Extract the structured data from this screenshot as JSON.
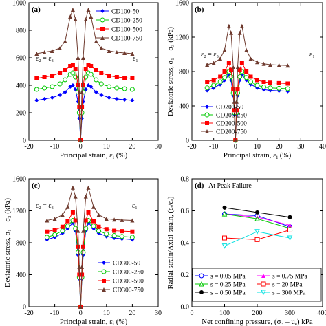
{
  "chart_data": [
    {
      "id": "a",
      "panel_label": "(a)",
      "type": "line",
      "xlabel": "Principal strain, ε",
      "xlabel_sub": "i",
      "xlabel_unit": " (%)",
      "ylabel": "",
      "xlim": [
        -20,
        30
      ],
      "ylim": [
        0,
        1000
      ],
      "xticks": [
        "-20",
        "-10",
        "0",
        "10",
        "20",
        "30"
      ],
      "yticks": [
        "0",
        "200",
        "400",
        "600",
        "800",
        "1000"
      ],
      "annotations": [
        "ε₂ = ε₃",
        "ε₁"
      ],
      "legend": [
        "CD100-50",
        "CD100-250",
        "CD100-500",
        "CD100-750"
      ],
      "series": [
        {
          "name": "CD100-50",
          "color": "#0000ff",
          "marker": "diamond",
          "x": [
            -17,
            -14,
            -11,
            -8,
            -6,
            -4,
            -3,
            -2,
            -1,
            -0.5,
            0,
            0.5,
            1,
            2,
            3,
            4,
            6,
            8,
            11,
            14,
            17,
            20
          ],
          "y": [
            290,
            300,
            310,
            330,
            350,
            390,
            400,
            370,
            280,
            160,
            0,
            160,
            280,
            370,
            400,
            390,
            350,
            330,
            310,
            300,
            295,
            290
          ]
        },
        {
          "name": "CD100-250",
          "color": "#00c800",
          "marker": "circle-open",
          "x": [
            -17,
            -14,
            -11,
            -8,
            -6,
            -4,
            -3,
            -2,
            -1,
            -0.5,
            0,
            0.5,
            1,
            2,
            3,
            4,
            6,
            8,
            11,
            14,
            17,
            20
          ],
          "y": [
            370,
            380,
            390,
            410,
            440,
            480,
            490,
            460,
            350,
            200,
            0,
            200,
            350,
            460,
            490,
            480,
            440,
            410,
            390,
            380,
            375,
            370
          ]
        },
        {
          "name": "CD100-500",
          "color": "#ff0000",
          "marker": "square",
          "x": [
            -17,
            -14,
            -11,
            -8,
            -6,
            -4,
            -3,
            -2,
            -1,
            -0.5,
            0,
            0.5,
            1,
            2,
            3,
            4,
            6,
            8,
            11,
            14,
            17,
            20
          ],
          "y": [
            450,
            460,
            470,
            490,
            510,
            540,
            550,
            520,
            400,
            240,
            0,
            240,
            400,
            520,
            550,
            540,
            510,
            490,
            470,
            460,
            455,
            450
          ]
        },
        {
          "name": "CD100-750",
          "color": "#6e3a2e",
          "marker": "triangle",
          "x": [
            -17,
            -14,
            -11,
            -8,
            -6,
            -4,
            -3,
            -2,
            -1,
            -0.5,
            0,
            0.5,
            1,
            2,
            3,
            4,
            6,
            8,
            11,
            14,
            17,
            20
          ],
          "y": [
            630,
            640,
            650,
            670,
            720,
            900,
            950,
            880,
            600,
            350,
            0,
            350,
            600,
            880,
            950,
            900,
            720,
            670,
            650,
            640,
            635,
            630
          ]
        }
      ]
    },
    {
      "id": "b",
      "panel_label": "(b)",
      "type": "line",
      "xlabel": "Principal strain, ε",
      "xlabel_sub": "i",
      "xlabel_unit": " (%)",
      "ylabel": "Deviatoric stress, σ₁ – σ₃ (kPa)",
      "xlim": [
        -20,
        40
      ],
      "ylim": [
        0,
        1600
      ],
      "xticks": [
        "-20",
        "-10",
        "0",
        "10",
        "20",
        "30",
        "40"
      ],
      "yticks": [
        "0",
        "400",
        "800",
        "1200",
        "1600"
      ],
      "annotations": [
        "ε₂ = ε₃",
        "ε₁"
      ],
      "legend": [
        "CD200-50",
        "CD200-250",
        "CD200-500",
        "CD200-750"
      ],
      "series": [
        {
          "name": "CD200-50",
          "color": "#0000ff",
          "marker": "diamond",
          "x": [
            -13,
            -10,
            -7,
            -5,
            -3,
            -2,
            -1,
            -0.5,
            0,
            0.5,
            1,
            2,
            3,
            5,
            7,
            10,
            13,
            16,
            20,
            24
          ],
          "y": [
            580,
            610,
            650,
            700,
            760,
            700,
            520,
            300,
            0,
            300,
            520,
            700,
            760,
            700,
            650,
            610,
            590,
            580,
            575,
            570
          ]
        },
        {
          "name": "CD200-250",
          "color": "#00c800",
          "marker": "circle-open",
          "x": [
            -13,
            -10,
            -7,
            -5,
            -3,
            -2,
            -1,
            -0.5,
            0,
            0.5,
            1,
            2,
            3,
            5,
            7,
            10,
            13,
            16,
            20,
            24
          ],
          "y": [
            610,
            640,
            680,
            730,
            800,
            740,
            550,
            320,
            0,
            320,
            550,
            740,
            800,
            730,
            680,
            640,
            620,
            610,
            605,
            600
          ]
        },
        {
          "name": "CD200-500",
          "color": "#ff0000",
          "marker": "square",
          "x": [
            -13,
            -10,
            -7,
            -5,
            -3,
            -2,
            -1,
            -0.5,
            0,
            0.5,
            1,
            2,
            3,
            5,
            7,
            10,
            13,
            16,
            20,
            24
          ],
          "y": [
            680,
            700,
            740,
            800,
            900,
            820,
            600,
            350,
            0,
            350,
            600,
            820,
            900,
            800,
            740,
            700,
            680,
            670,
            665,
            660
          ]
        },
        {
          "name": "CD200-750",
          "color": "#6e3a2e",
          "marker": "triangle",
          "x": [
            -13,
            -10,
            -7,
            -5,
            -3,
            -2,
            -1,
            -0.5,
            0,
            0.5,
            1,
            2,
            3,
            5,
            7,
            10,
            13,
            16,
            20,
            24
          ],
          "y": [
            880,
            900,
            950,
            1050,
            1330,
            1250,
            850,
            450,
            0,
            450,
            850,
            1250,
            1330,
            1050,
            950,
            910,
            890,
            880,
            875,
            870
          ]
        }
      ]
    },
    {
      "id": "c",
      "panel_label": "(c)",
      "type": "line",
      "xlabel": "Principal strain, ε",
      "xlabel_sub": "i",
      "xlabel_unit": " (%)",
      "ylabel": "Deviatoric stress, σ₁ – σ₃ (kPa)",
      "xlim": [
        -20,
        30
      ],
      "ylim": [
        0,
        1600
      ],
      "xticks": [
        "-20",
        "-10",
        "0",
        "10",
        "20",
        "30"
      ],
      "yticks": [
        "0",
        "400",
        "800",
        "1200",
        "1600"
      ],
      "annotations": [
        "ε₂ = ε₃",
        "ε₁"
      ],
      "legend": [
        "CD300-50",
        "CD300-250",
        "CD300-500",
        "CD300-750"
      ],
      "series": [
        {
          "name": "CD300-50",
          "color": "#0000ff",
          "marker": "diamond",
          "x": [
            -13,
            -10,
            -7,
            -5,
            -3,
            -2,
            -1,
            -0.5,
            0,
            0.5,
            1,
            2,
            3,
            5,
            7,
            10,
            13,
            16,
            20
          ],
          "y": [
            840,
            870,
            920,
            980,
            1050,
            950,
            650,
            350,
            0,
            350,
            650,
            950,
            1050,
            980,
            920,
            880,
            860,
            850,
            840
          ]
        },
        {
          "name": "CD300-250",
          "color": "#00c800",
          "marker": "circle-open",
          "x": [
            -13,
            -10,
            -7,
            -5,
            -3,
            -2,
            -1,
            -0.5,
            0,
            0.5,
            1,
            2,
            3,
            5,
            7,
            10,
            13,
            16,
            20
          ],
          "y": [
            870,
            900,
            950,
            1010,
            1080,
            980,
            680,
            370,
            0,
            370,
            680,
            980,
            1080,
            1010,
            950,
            910,
            890,
            880,
            870
          ]
        },
        {
          "name": "CD300-500",
          "color": "#ff0000",
          "marker": "square",
          "x": [
            -13,
            -10,
            -7,
            -5,
            -3,
            -2,
            -1,
            -0.5,
            0,
            0.5,
            1,
            2,
            3,
            5,
            7,
            10,
            13,
            16,
            20
          ],
          "y": [
            940,
            960,
            1000,
            1070,
            1180,
            1080,
            750,
            400,
            0,
            400,
            750,
            1080,
            1180,
            1070,
            1000,
            970,
            950,
            945,
            940
          ]
        },
        {
          "name": "CD300-750",
          "color": "#6e3a2e",
          "marker": "triangle",
          "x": [
            -13,
            -10,
            -7,
            -5,
            -3,
            -2,
            -1,
            -0.5,
            0,
            0.5,
            1,
            2,
            3,
            5,
            7,
            10,
            13,
            16,
            20
          ],
          "y": [
            1080,
            1100,
            1150,
            1250,
            1490,
            1380,
            950,
            500,
            0,
            500,
            950,
            1380,
            1490,
            1250,
            1150,
            1100,
            1090,
            1085,
            1080
          ]
        }
      ]
    },
    {
      "id": "d",
      "panel_label": "(d)",
      "type": "scatter",
      "title": "At Peak Failure",
      "xlabel": "Net confining pressure, (σ₃ – uₐ) kPa",
      "ylabel": "Radial strain/Axial strain, (εᵣ/εₐ)",
      "xlim": [
        0,
        400
      ],
      "ylim": [
        0.0,
        0.8
      ],
      "xticks": [
        "0",
        "100",
        "200",
        "300",
        "400"
      ],
      "yticks": [
        "0.0",
        "0.2",
        "0.4",
        "0.6",
        "0.8"
      ],
      "legend": [
        "s = 0.05 MPa",
        "s = 0.75 MPa",
        "s = 0.25 MPa",
        "s = 20 MPa",
        "s = 0.50 MPa",
        "s = 300 MPa"
      ],
      "series": [
        {
          "name": "s = 0.05 MPa",
          "color": "#0000ff",
          "marker": "circle-open",
          "x": [
            100,
            200,
            300
          ],
          "y": [
            0.58,
            0.57,
            0.5
          ]
        },
        {
          "name": "s = 0.75 MPa",
          "color": "#ff00ff",
          "marker": "triangle",
          "x": [
            100,
            200,
            300
          ],
          "y": [
            0.58,
            0.56,
            0.51
          ]
        },
        {
          "name": "s = 0.25 MPa",
          "color": "#00c800",
          "marker": "triangle-open",
          "x": [
            100,
            200,
            300
          ],
          "y": [
            0.58,
            0.55,
            0.49
          ]
        },
        {
          "name": "s = 20 MPa",
          "color": "#ff0000",
          "marker": "square-open",
          "x": [
            100,
            200,
            300
          ],
          "y": [
            0.43,
            0.42,
            0.48
          ]
        },
        {
          "name": "s = 0.50 MPa",
          "color": "#000000",
          "marker": "circle",
          "x": [
            100,
            200,
            300
          ],
          "y": [
            0.62,
            0.59,
            0.56
          ]
        },
        {
          "name": "s = 300 MPa",
          "color": "#00e0e0",
          "marker": "triangle-down-open",
          "x": [
            100,
            200,
            300
          ],
          "y": [
            0.38,
            0.47,
            0.43
          ]
        }
      ]
    }
  ]
}
